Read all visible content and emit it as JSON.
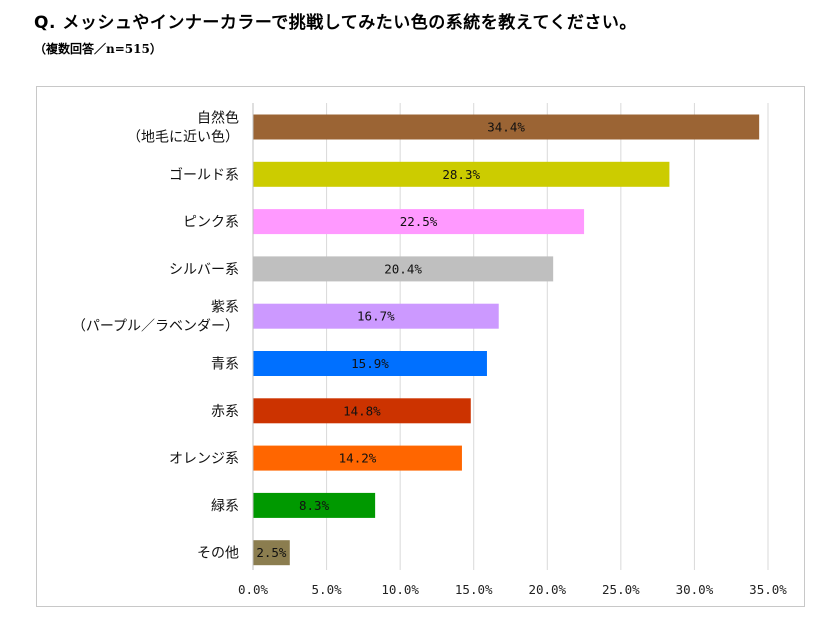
{
  "header": {
    "title": "Q. メッシュやインナーカラーで挑戦してみたい色の系統を教えてください。",
    "subtitle": "（複数回答／n=515）"
  },
  "chart_data": {
    "type": "bar",
    "orientation": "horizontal",
    "categories": [
      [
        "自然色",
        "（地毛に近い色）"
      ],
      [
        "ゴールド系"
      ],
      [
        "ピンク系"
      ],
      [
        "シルバー系"
      ],
      [
        "紫系",
        "（パープル／ラベンダー）"
      ],
      [
        "青系"
      ],
      [
        "赤系"
      ],
      [
        "オレンジ系"
      ],
      [
        "緑系"
      ],
      [
        "その他"
      ]
    ],
    "values": [
      34.4,
      28.3,
      22.5,
      20.4,
      16.7,
      15.9,
      14.8,
      14.2,
      8.3,
      2.5
    ],
    "value_labels": [
      "34.4%",
      "28.3%",
      "22.5%",
      "20.4%",
      "16.7%",
      "15.9%",
      "14.8%",
      "14.2%",
      "8.3%",
      "2.5%"
    ],
    "colors": [
      "#9b6434",
      "#cccc00",
      "#ff99ff",
      "#bfbfbf",
      "#cc99ff",
      "#0070ff",
      "#cc3300",
      "#ff6600",
      "#009900",
      "#8b7d4f"
    ],
    "xlim": [
      0,
      35
    ],
    "xticks": [
      0,
      5,
      10,
      15,
      20,
      25,
      30,
      35
    ],
    "xtick_labels": [
      "0.0%",
      "5.0%",
      "10.0%",
      "15.0%",
      "20.0%",
      "25.0%",
      "30.0%",
      "35.0%"
    ],
    "grid": true,
    "grid_color": "#d9d9d9"
  }
}
